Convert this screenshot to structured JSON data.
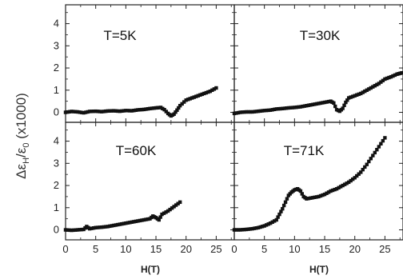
{
  "chart_data": [
    {
      "type": "scatter",
      "title": "T=5K",
      "xlim": [
        0,
        28
      ],
      "ylim": [
        -0.45,
        4.85
      ],
      "series": [
        {
          "marker": "square",
          "color": "#111111",
          "points": [
            [
              0,
              0
            ],
            [
              1,
              0.04
            ],
            [
              2,
              0.02
            ],
            [
              3,
              -0.02
            ],
            [
              4,
              0.04
            ],
            [
              5,
              0.05
            ],
            [
              6,
              0.03
            ],
            [
              7,
              0.06
            ],
            [
              8,
              0.07
            ],
            [
              9,
              0.05
            ],
            [
              10,
              0.08
            ],
            [
              11,
              0.07
            ],
            [
              12,
              0.11
            ],
            [
              13,
              0.13
            ],
            [
              14,
              0.17
            ],
            [
              15,
              0.2
            ],
            [
              15.8,
              0.22
            ],
            [
              16.4,
              0.12
            ],
            [
              17,
              -0.05
            ],
            [
              17.5,
              -0.16
            ],
            [
              18,
              -0.08
            ],
            [
              18.5,
              0.1
            ],
            [
              19,
              0.3
            ],
            [
              20,
              0.55
            ],
            [
              21,
              0.65
            ],
            [
              22,
              0.75
            ],
            [
              23,
              0.85
            ],
            [
              24,
              0.95
            ],
            [
              25,
              1.1
            ]
          ]
        }
      ]
    },
    {
      "type": "scatter",
      "title": "T=30K",
      "xlim": [
        0,
        28
      ],
      "ylim": [
        -0.45,
        4.85
      ],
      "series": [
        {
          "marker": "square",
          "color": "#111111",
          "points": [
            [
              0,
              -0.05
            ],
            [
              1,
              0
            ],
            [
              2,
              0.02
            ],
            [
              3,
              0.02
            ],
            [
              4,
              0.05
            ],
            [
              5,
              0.08
            ],
            [
              6,
              0.1
            ],
            [
              7,
              0.15
            ],
            [
              8,
              0.17
            ],
            [
              9,
              0.2
            ],
            [
              10,
              0.22
            ],
            [
              11,
              0.25
            ],
            [
              12,
              0.3
            ],
            [
              13,
              0.35
            ],
            [
              14,
              0.4
            ],
            [
              15,
              0.45
            ],
            [
              16,
              0.5
            ],
            [
              16.5,
              0.42
            ],
            [
              17,
              0.12
            ],
            [
              17.5,
              0.05
            ],
            [
              18,
              0.18
            ],
            [
              18.5,
              0.45
            ],
            [
              19,
              0.65
            ],
            [
              20,
              0.75
            ],
            [
              21,
              0.85
            ],
            [
              22,
              1
            ],
            [
              23,
              1.15
            ],
            [
              24,
              1.3
            ],
            [
              25,
              1.5
            ],
            [
              26,
              1.6
            ],
            [
              27,
              1.72
            ],
            [
              27.8,
              1.78
            ]
          ]
        }
      ]
    },
    {
      "type": "scatter",
      "title": "T=60K",
      "xlim": [
        0,
        28
      ],
      "ylim": [
        -0.45,
        4.85
      ],
      "series": [
        {
          "marker": "square",
          "color": "#111111",
          "points": [
            [
              0,
              0
            ],
            [
              1,
              -0.02
            ],
            [
              2,
              0
            ],
            [
              3,
              0.02
            ],
            [
              3.5,
              0.15
            ],
            [
              4,
              0.05
            ],
            [
              5,
              0.1
            ],
            [
              6,
              0.12
            ],
            [
              7,
              0.15
            ],
            [
              8,
              0.2
            ],
            [
              9,
              0.25
            ],
            [
              10,
              0.3
            ],
            [
              11,
              0.35
            ],
            [
              12,
              0.4
            ],
            [
              13,
              0.45
            ],
            [
              14,
              0.5
            ],
            [
              14.5,
              0.62
            ],
            [
              15,
              0.55
            ],
            [
              15.5,
              0.45
            ],
            [
              16,
              0.7
            ],
            [
              17,
              0.85
            ],
            [
              18,
              1.05
            ],
            [
              19,
              1.25
            ]
          ]
        }
      ]
    },
    {
      "type": "scatter",
      "title": "T=71K",
      "xlim": [
        0,
        28
      ],
      "ylim": [
        -0.45,
        4.85
      ],
      "series": [
        {
          "marker": "square",
          "color": "#111111",
          "points": [
            [
              0,
              0
            ],
            [
              1,
              0
            ],
            [
              2,
              0.02
            ],
            [
              3,
              0.05
            ],
            [
              4,
              0.1
            ],
            [
              5,
              0.18
            ],
            [
              6,
              0.3
            ],
            [
              7,
              0.45
            ],
            [
              7.5,
              0.7
            ],
            [
              8,
              0.95
            ],
            [
              8.5,
              1.25
            ],
            [
              9,
              1.55
            ],
            [
              9.5,
              1.7
            ],
            [
              10,
              1.8
            ],
            [
              10.5,
              1.85
            ],
            [
              11,
              1.75
            ],
            [
              11.5,
              1.5
            ],
            [
              12,
              1.4
            ],
            [
              13,
              1.45
            ],
            [
              14,
              1.5
            ],
            [
              15,
              1.6
            ],
            [
              16,
              1.75
            ],
            [
              17,
              1.85
            ],
            [
              18,
              2
            ],
            [
              19,
              2.15
            ],
            [
              20,
              2.35
            ],
            [
              21,
              2.6
            ],
            [
              22,
              2.95
            ],
            [
              23,
              3.35
            ],
            [
              24,
              3.75
            ],
            [
              25,
              4.15
            ]
          ]
        }
      ]
    }
  ],
  "axes": {
    "ylabel_main": "Δε",
    "ylabel_sub1": "H",
    "ylabel_mid": "/ε",
    "ylabel_sub2": "0",
    "ylabel_tail": " (x1000)",
    "xlabel": "H(T)",
    "yticks": [
      "0",
      "1",
      "2",
      "3",
      "4"
    ],
    "xticks": [
      "0",
      "5",
      "10",
      "15",
      "20",
      "25"
    ],
    "xtick_values": [
      0,
      5,
      10,
      15,
      20,
      25
    ],
    "ytick_values": [
      0,
      1,
      2,
      3,
      4
    ]
  }
}
